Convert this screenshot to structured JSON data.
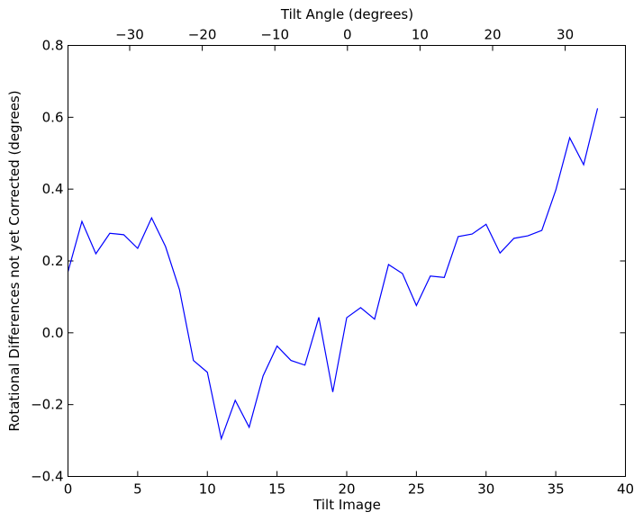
{
  "chart_data": {
    "type": "line",
    "xlabel": "Tilt Image",
    "ylabel": "Rotational Differences not yet Corrected (degrees)",
    "top_xlabel": "Tilt Angle (degrees)",
    "xlim": [
      0,
      40
    ],
    "ylim": [
      -0.4,
      0.8
    ],
    "top_xlim": [
      -38.5,
      38.3
    ],
    "x_ticks": [
      0,
      5,
      10,
      15,
      20,
      25,
      30,
      35,
      40
    ],
    "x_tick_labels": [
      "0",
      "5",
      "10",
      "15",
      "20",
      "25",
      "30",
      "35",
      "40"
    ],
    "y_ticks": [
      -0.4,
      -0.2,
      0.0,
      0.2,
      0.4,
      0.6,
      0.8
    ],
    "y_tick_labels": [
      "−0.4",
      "−0.2",
      "0.0",
      "0.2",
      "0.4",
      "0.6",
      "0.8"
    ],
    "top_x_ticks": [
      -30,
      -20,
      -10,
      0,
      10,
      20,
      30
    ],
    "top_x_tick_labels": [
      "−30",
      "−20",
      "−10",
      "0",
      "10",
      "20",
      "30"
    ],
    "grid": false,
    "series": [
      {
        "color": "#0000ff",
        "x": [
          0,
          1,
          2,
          3,
          4,
          5,
          6,
          7,
          8,
          9,
          10,
          11,
          12,
          13,
          14,
          15,
          16,
          17,
          18,
          19,
          20,
          21,
          22,
          23,
          24,
          25,
          26,
          27,
          28,
          29,
          30,
          31,
          32,
          33,
          34,
          35,
          36,
          37,
          38
        ],
        "y": [
          0.17,
          0.31,
          0.22,
          0.277,
          0.273,
          0.235,
          0.32,
          0.24,
          0.12,
          -0.077,
          -0.11,
          -0.295,
          -0.188,
          -0.263,
          -0.12,
          -0.037,
          -0.077,
          -0.09,
          0.043,
          -0.165,
          0.042,
          0.07,
          0.038,
          0.19,
          0.165,
          0.076,
          0.158,
          0.154,
          0.268,
          0.275,
          0.302,
          0.222,
          0.263,
          0.27,
          0.285,
          0.397,
          0.543,
          0.468,
          0.625
        ]
      }
    ]
  }
}
